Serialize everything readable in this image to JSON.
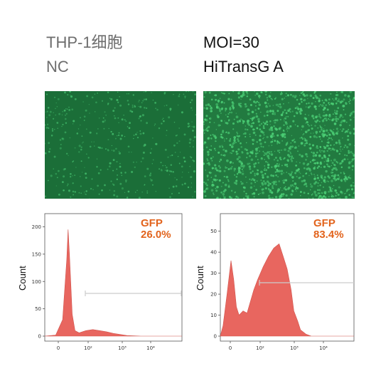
{
  "header": {
    "left_line1": "THP-1细胞",
    "left_line2": "NC",
    "right_line1": "MOI=30",
    "right_line2": "HiTransG A"
  },
  "colors": {
    "histogram_fill": "#e8665f",
    "percent_text": "#e2631c",
    "gate_line": "#cccccc",
    "micrograph_bg": "#1b6e38",
    "micrograph_cells": "#3ec46a"
  },
  "panels": {
    "left": {
      "percent_line1": "GFP",
      "percent_line2": "26.0%",
      "ylabel": "Count",
      "yticks": [
        "0",
        "50",
        "100",
        "150",
        "200"
      ],
      "xticks": [
        "0",
        "10²",
        "10³",
        "10⁴"
      ]
    },
    "right": {
      "percent_line1": "GFP",
      "percent_line2": "83.4%",
      "ylabel": "Count",
      "yticks": [
        "0",
        "10",
        "20",
        "30",
        "40",
        "50"
      ],
      "xticks": [
        "0",
        "10²",
        "10³",
        "10⁴"
      ]
    }
  },
  "chart_data": [
    {
      "type": "area",
      "ylabel": "Count",
      "ylim": [
        0,
        215
      ],
      "yticks": [
        0,
        50,
        100,
        150,
        200
      ],
      "gate_value": "26.0%",
      "x": [
        0,
        0.08,
        0.13,
        0.16,
        0.17,
        0.18,
        0.2,
        0.22,
        0.25,
        0.3,
        0.35,
        0.4,
        0.45,
        0.5,
        0.55,
        0.6,
        0.7,
        1.0
      ],
      "values": [
        0,
        2,
        30,
        140,
        195,
        150,
        40,
        10,
        6,
        10,
        12,
        10,
        8,
        5,
        3,
        1,
        0,
        0
      ]
    },
    {
      "type": "area",
      "ylabel": "Count",
      "ylim": [
        0,
        56
      ],
      "yticks": [
        0,
        10,
        20,
        30,
        40,
        50
      ],
      "gate_value": "83.4%",
      "x": [
        0,
        0.02,
        0.05,
        0.08,
        0.1,
        0.12,
        0.14,
        0.17,
        0.2,
        0.25,
        0.28,
        0.32,
        0.36,
        0.4,
        0.44,
        0.47,
        0.5,
        0.53,
        0.55,
        0.58,
        0.6,
        0.64,
        0.68,
        0.72,
        0.8,
        1.0
      ],
      "values": [
        0,
        5,
        20,
        36,
        27,
        14,
        10,
        12,
        11,
        22,
        27,
        33,
        38,
        42,
        44,
        38,
        32,
        22,
        12,
        7,
        3,
        1,
        0,
        0,
        0,
        0
      ]
    }
  ]
}
